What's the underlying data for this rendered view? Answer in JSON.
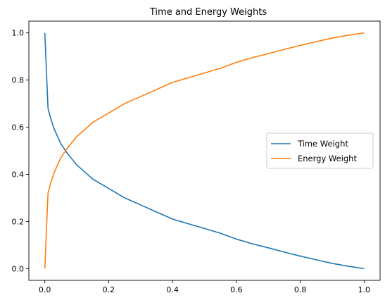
{
  "chart_data": {
    "type": "line",
    "title": "Time and Energy Weights",
    "xlabel": "",
    "ylabel": "",
    "xlim": [
      -0.05,
      1.05
    ],
    "ylim": [
      -0.05,
      1.05
    ],
    "xticks": [
      0.0,
      0.2,
      0.4,
      0.6,
      0.8,
      1.0
    ],
    "xtick_labels": [
      "0.0",
      "0.2",
      "0.4",
      "0.6",
      "0.8",
      "1.0"
    ],
    "yticks": [
      0.0,
      0.2,
      0.4,
      0.6,
      0.8,
      1.0
    ],
    "ytick_labels": [
      "0.0",
      "0.2",
      "0.4",
      "0.6",
      "0.8",
      "1.0"
    ],
    "grid": false,
    "legend_position": "center-right",
    "x": [
      0.0,
      0.01,
      0.02,
      0.03,
      0.04,
      0.05,
      0.07,
      0.1,
      0.15,
      0.2,
      0.25,
      0.3,
      0.35,
      0.4,
      0.45,
      0.5,
      0.55,
      0.6,
      0.65,
      0.7,
      0.75,
      0.8,
      0.85,
      0.9,
      0.95,
      1.0
    ],
    "series": [
      {
        "name": "Time Weight",
        "color": "#1f77b4",
        "values": [
          1.0,
          0.68,
          0.63,
          0.59,
          0.56,
          0.53,
          0.49,
          0.44,
          0.38,
          0.34,
          0.3,
          0.27,
          0.24,
          0.21,
          0.19,
          0.17,
          0.15,
          0.125,
          0.105,
          0.088,
          0.07,
          0.053,
          0.037,
          0.022,
          0.01,
          0.0
        ]
      },
      {
        "name": "Energy Weight",
        "color": "#ff7f0e",
        "values": [
          0.0,
          0.32,
          0.37,
          0.41,
          0.44,
          0.47,
          0.51,
          0.56,
          0.62,
          0.66,
          0.7,
          0.73,
          0.76,
          0.79,
          0.81,
          0.83,
          0.85,
          0.875,
          0.895,
          0.912,
          0.93,
          0.947,
          0.963,
          0.978,
          0.99,
          1.0
        ]
      }
    ]
  }
}
